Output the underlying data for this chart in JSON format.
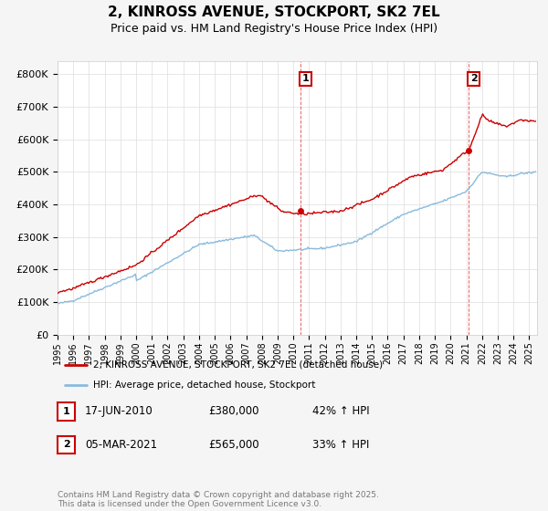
{
  "title": "2, KINROSS AVENUE, STOCKPORT, SK2 7EL",
  "subtitle": "Price paid vs. HM Land Registry's House Price Index (HPI)",
  "title_fontsize": 11,
  "subtitle_fontsize": 9,
  "ylabel_ticks": [
    "£0",
    "£100K",
    "£200K",
    "£300K",
    "£400K",
    "£500K",
    "£600K",
    "£700K",
    "£800K"
  ],
  "ytick_values": [
    0,
    100000,
    200000,
    300000,
    400000,
    500000,
    600000,
    700000,
    800000
  ],
  "ylim": [
    0,
    840000
  ],
  "background_color": "#f5f5f5",
  "plot_bg_color": "#ffffff",
  "grid_color": "#dddddd",
  "red_line_color": "#cc0000",
  "blue_line_color": "#88bbdd",
  "marker1_date": 2010.46,
  "marker1_value": 380000,
  "marker2_date": 2021.17,
  "marker2_value": 565000,
  "vline1_x": 2010.46,
  "vline2_x": 2021.17,
  "legend_label_red": "2, KINROSS AVENUE, STOCKPORT, SK2 7EL (detached house)",
  "legend_label_blue": "HPI: Average price, detached house, Stockport",
  "annotation1_num": "1",
  "annotation2_num": "2",
  "table_row1": [
    "1",
    "17-JUN-2010",
    "£380,000",
    "42% ↑ HPI"
  ],
  "table_row2": [
    "2",
    "05-MAR-2021",
    "£565,000",
    "33% ↑ HPI"
  ],
  "footer": "Contains HM Land Registry data © Crown copyright and database right 2025.\nThis data is licensed under the Open Government Licence v3.0.",
  "xmin": 1995,
  "xmax": 2025.5
}
